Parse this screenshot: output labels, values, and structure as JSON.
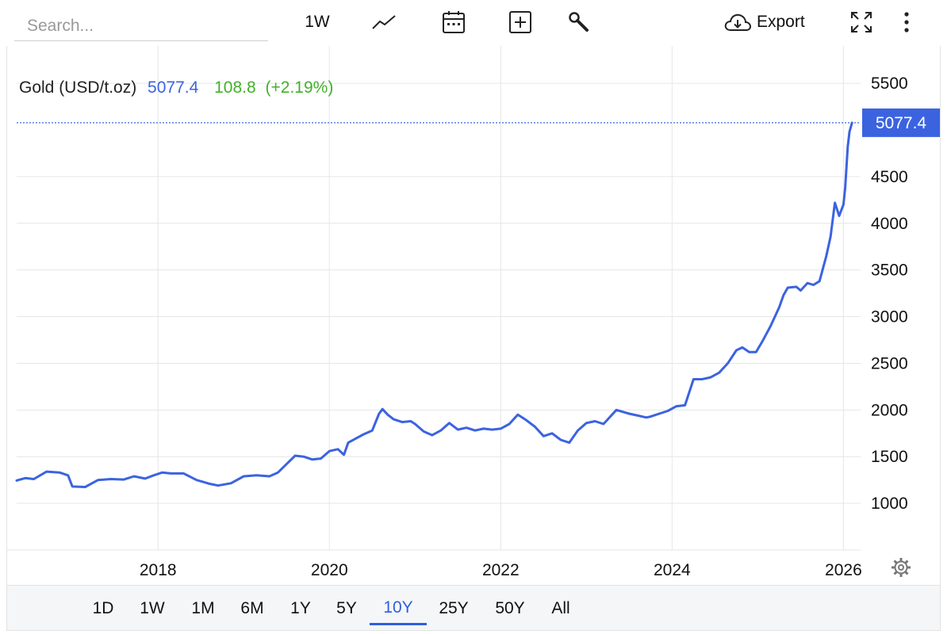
{
  "toolbar": {
    "search_placeholder": "Search...",
    "interval_label": "1W",
    "export_label": "Export"
  },
  "range_selector": {
    "items": [
      "1D",
      "1W",
      "1M",
      "6M",
      "1Y",
      "5Y",
      "10Y",
      "25Y",
      "50Y",
      "All"
    ],
    "active": "10Y"
  },
  "colors": {
    "series": "#3b63e0",
    "positive": "#43b02a",
    "grid": "#e6e6e6"
  },
  "chart_data": {
    "type": "line",
    "legend": {
      "name": "Gold (USD/t.oz)",
      "last": "5077.4",
      "change": "108.8",
      "change_pct": "(+2.19%)"
    },
    "last_value": 5077.4,
    "last_value_label": "5077.4",
    "yticks": [
      1000,
      1500,
      2000,
      2500,
      3000,
      3500,
      4000,
      4500,
      5500
    ],
    "ytick_labels": [
      "1000",
      "1500",
      "2000",
      "2500",
      "3000",
      "3500",
      "4000",
      "4500",
      "5500"
    ],
    "ylim": [
      500,
      5900
    ],
    "xlim": [
      2016.35,
      2026.2
    ],
    "xticks": [
      2018,
      2020,
      2022,
      2024,
      2026
    ],
    "xtick_labels": [
      "2018",
      "2020",
      "2022",
      "2024",
      "2026"
    ],
    "grid": true,
    "series": [
      {
        "x": [
          2016.35,
          2016.45,
          2016.55,
          2016.7,
          2016.85,
          2016.95,
          2017.0,
          2017.15,
          2017.3,
          2017.45,
          2017.6,
          2017.72,
          2017.85,
          2017.95,
          2018.05,
          2018.15,
          2018.3,
          2018.45,
          2018.6,
          2018.7,
          2018.85,
          2019.0,
          2019.15,
          2019.3,
          2019.4,
          2019.5,
          2019.6,
          2019.7,
          2019.8,
          2019.9,
          2020.0,
          2020.1,
          2020.17,
          2020.22,
          2020.3,
          2020.4,
          2020.5,
          2020.58,
          2020.62,
          2020.68,
          2020.75,
          2020.85,
          2020.95,
          2021.0,
          2021.1,
          2021.2,
          2021.3,
          2021.4,
          2021.5,
          2021.6,
          2021.7,
          2021.8,
          2021.9,
          2022.0,
          2022.1,
          2022.2,
          2022.3,
          2022.4,
          2022.5,
          2022.6,
          2022.7,
          2022.8,
          2022.9,
          2023.0,
          2023.1,
          2023.2,
          2023.35,
          2023.5,
          2023.6,
          2023.7,
          2023.75,
          2023.85,
          2023.95,
          2024.05,
          2024.15,
          2024.25,
          2024.35,
          2024.45,
          2024.55,
          2024.65,
          2024.75,
          2024.82,
          2024.9,
          2024.98,
          2025.05,
          2025.15,
          2025.25,
          2025.3,
          2025.35,
          2025.45,
          2025.5,
          2025.58,
          2025.65,
          2025.72,
          2025.8,
          2025.85,
          2025.9,
          2025.95,
          2026.0,
          2026.02,
          2026.05,
          2026.07,
          2026.1
        ],
        "y": [
          1245,
          1270,
          1260,
          1340,
          1330,
          1300,
          1180,
          1175,
          1250,
          1260,
          1255,
          1290,
          1265,
          1300,
          1330,
          1320,
          1320,
          1250,
          1210,
          1190,
          1215,
          1290,
          1300,
          1290,
          1330,
          1420,
          1510,
          1500,
          1470,
          1480,
          1560,
          1580,
          1520,
          1650,
          1690,
          1740,
          1780,
          1960,
          2010,
          1950,
          1900,
          1870,
          1880,
          1850,
          1770,
          1730,
          1780,
          1860,
          1790,
          1810,
          1780,
          1800,
          1790,
          1800,
          1850,
          1950,
          1890,
          1820,
          1720,
          1750,
          1680,
          1650,
          1780,
          1860,
          1880,
          1850,
          2000,
          1960,
          1940,
          1920,
          1930,
          1960,
          1990,
          2040,
          2050,
          2330,
          2330,
          2350,
          2400,
          2500,
          2640,
          2670,
          2620,
          2620,
          2730,
          2900,
          3100,
          3230,
          3310,
          3320,
          3280,
          3360,
          3340,
          3380,
          3650,
          3860,
          4220,
          4080,
          4200,
          4380,
          4820,
          4980,
          5077.4
        ]
      }
    ]
  }
}
